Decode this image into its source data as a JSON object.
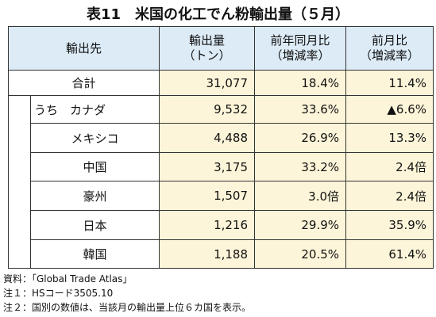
{
  "title": "表11　米国の化工でん粉輸出量（５月）",
  "table": {
    "header": [
      [
        "輸出先"
      ],
      [
        "輸出量",
        "（トン）"
      ],
      [
        "前年同月比",
        "（増減率）"
      ],
      [
        "前月比",
        "（増減率）"
      ]
    ],
    "rows": [
      [
        "合計",
        "31,077",
        "18.4%",
        "11.4%"
      ],
      [
        "うち　カナダ",
        "9,532",
        "33.6%",
        "▲6.6%"
      ],
      [
        "メキシコ",
        "4,488",
        "26.9%",
        "13.3%"
      ],
      [
        "中国",
        "3,175",
        "33.2%",
        "2.4倍"
      ],
      [
        "豪州",
        "1,507",
        "3.0倍",
        "2.4倍"
      ],
      [
        "日本",
        "1,216",
        "29.9%",
        "35.9%"
      ],
      [
        "韓国",
        "1,188",
        "20.5%",
        "61.4%"
      ]
    ]
  },
  "notes": [
    "資料：「Global Trade Atlas」",
    "注１：HSコード3505.10",
    "注２：国別の数値は、当該月の輸出量上位６カ国を表示。"
  ]
}
